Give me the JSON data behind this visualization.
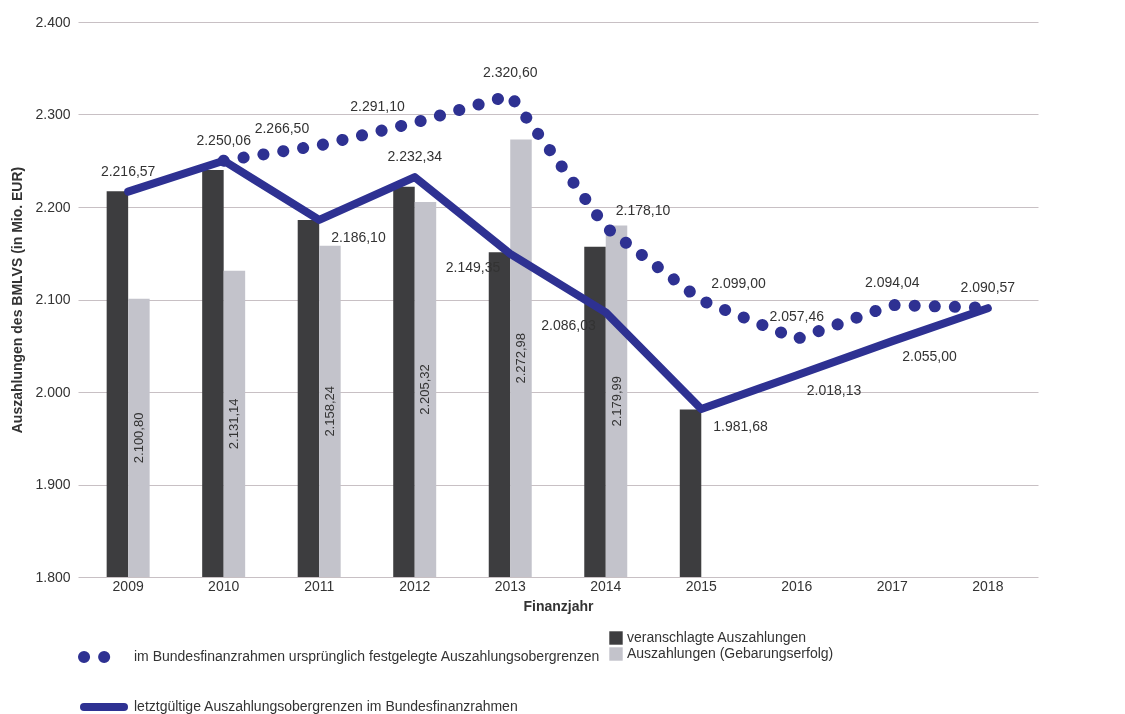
{
  "chart_data": {
    "type": "bar",
    "xlabel": "Finanzjahr",
    "ylabel": "Auszahlungen des BMLVS (in Mio. EUR)",
    "categories": [
      "2009",
      "2010",
      "2011",
      "2012",
      "2013",
      "2014",
      "2015",
      "2016",
      "2017",
      "2018"
    ],
    "series": [
      {
        "name": "veranschlagte Auszahlungen",
        "color": "#3d3d3f",
        "values": [
          2217,
          2240,
          2186,
          2222,
          2151,
          2157,
          1981,
          null,
          null,
          null
        ]
      },
      {
        "name": "Auszahlungen (Gebarungserfolg)",
        "color": "#c3c3cb",
        "values": [
          2100.8,
          2131.14,
          2158.24,
          2205.32,
          2272.98,
          2179.99,
          null,
          null,
          null,
          null
        ],
        "value_labels": [
          "2.100,80",
          "2.131,14",
          "2.158,24",
          "2.205,32",
          "2.272,98",
          "2.179,99",
          null,
          null,
          null,
          null
        ]
      },
      {
        "name": "im Bundesfinanzrahmen ursprünglich festgelegte Auszahlungsobergrenzen",
        "type": "line",
        "line_style": "dotted",
        "color": "#2e3192",
        "values": [
          null,
          2250,
          2266.5,
          2291.1,
          2320.6,
          2178.1,
          2099.0,
          2057.46,
          2094.04,
          2091
        ],
        "value_labels": [
          null,
          null,
          "2.266,50",
          "2.291,10",
          "2.320,60",
          "2.178,10",
          "2.099,00",
          "2.057,46",
          "2.094,04",
          null
        ]
      },
      {
        "name": "letztgültige Auszahlungsobergrenzen im Bundesfinanzrahmen",
        "type": "line",
        "line_style": "solid",
        "color": "#2e3192",
        "values": [
          2216.57,
          2250.06,
          2186.1,
          2232.34,
          2149.35,
          2086.03,
          1981.68,
          2018.13,
          2055.0,
          2090.57
        ],
        "value_labels": [
          "2.216,57",
          "2.250,06",
          "2.186,10",
          "2.232,34",
          "2.149,35",
          "2.086,03",
          "1.981,68",
          "2.018,13",
          "2.055,00",
          "2.090,57"
        ]
      }
    ],
    "ylim": [
      1800,
      2400
    ],
    "yticks": [
      {
        "value": 1800,
        "label": "1.800"
      },
      {
        "value": 1900,
        "label": "1.900"
      },
      {
        "value": 2000,
        "label": "2.000"
      },
      {
        "value": 2100,
        "label": "2.100"
      },
      {
        "value": 2200,
        "label": "2.200"
      },
      {
        "value": 2300,
        "label": "2.300"
      },
      {
        "value": 2400,
        "label": "2.400"
      }
    ],
    "grid": "y",
    "legend": "bottom"
  }
}
